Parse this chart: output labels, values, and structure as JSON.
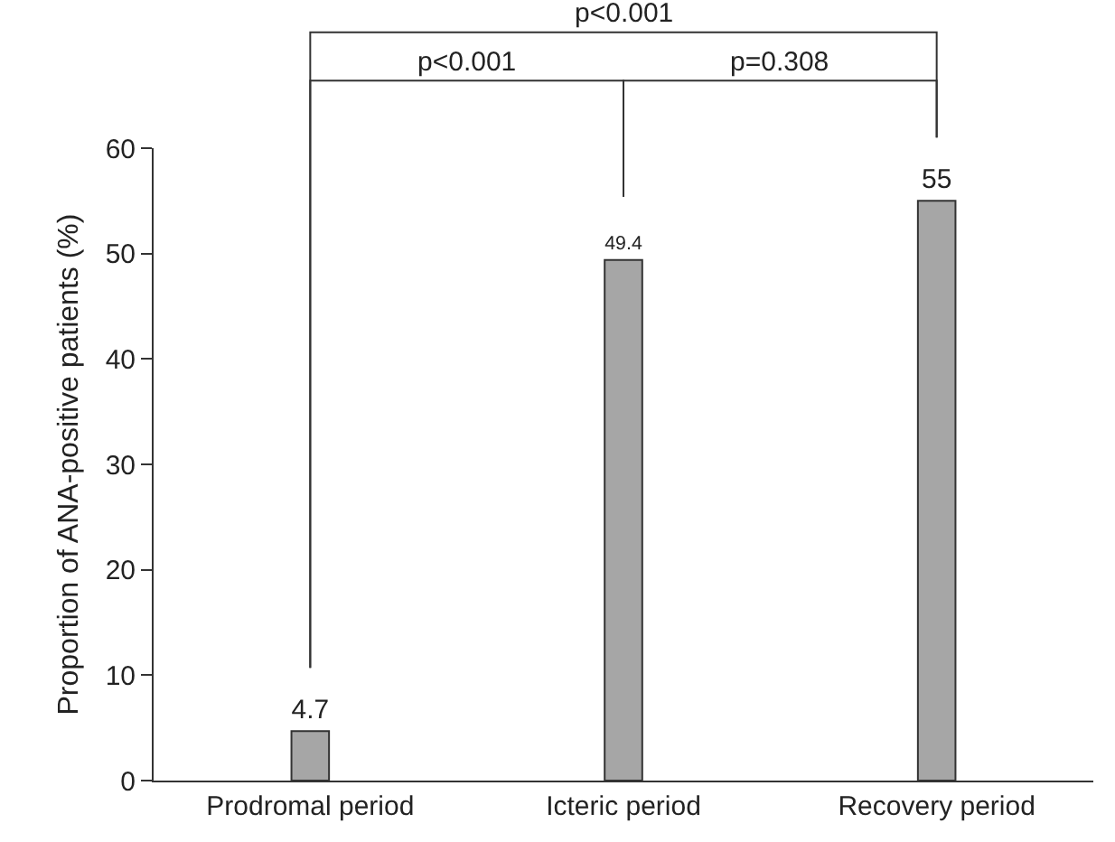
{
  "chart_data": {
    "type": "bar",
    "ylabel": "Proportion of ANA-positive patients (%)",
    "categories": [
      "Prodromal period",
      "Icteric period",
      "Recovery period"
    ],
    "values": [
      4.7,
      49.4,
      55
    ],
    "color": "#a6a6a6",
    "ylim": [
      0,
      60
    ],
    "yticks": [
      0,
      10,
      20,
      30,
      40,
      50,
      60
    ],
    "grid": false,
    "data_labels": true,
    "annotations": [
      "p<0.001",
      "p=0.308",
      "p<0.001"
    ]
  }
}
